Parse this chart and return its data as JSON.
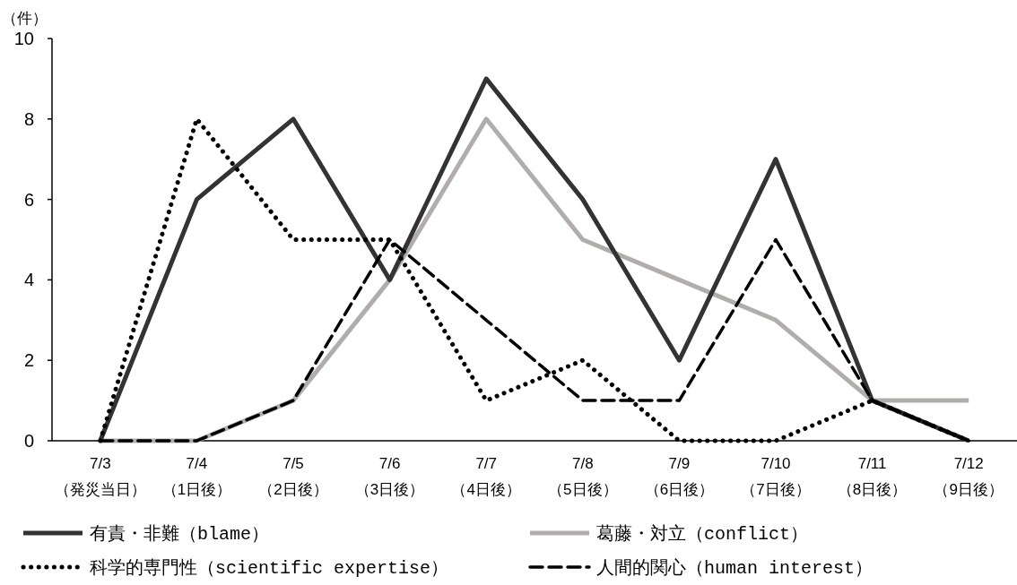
{
  "chart_data": {
    "type": "line",
    "ylabel": "（件）",
    "categories": [
      "7/3\n（発災当日）",
      "7/4\n（1日後）",
      "7/5\n（2日後）",
      "7/6\n（3日後）",
      "7/7\n（4日後）",
      "7/8\n（5日後）",
      "7/9\n（6日後）",
      "7/10\n（7日後）",
      "7/11\n（8日後）",
      "7/12\n（9日後）"
    ],
    "series": [
      {
        "name": "有責・非難（blame）",
        "color": "#333333",
        "line_style": "solid",
        "values": [
          0,
          6,
          8,
          4,
          9,
          6,
          2,
          7,
          1,
          0
        ]
      },
      {
        "name": "葛藤・対立（conflict）",
        "color": "#b1adad",
        "line_style": "solid",
        "values": [
          0,
          0,
          1,
          4,
          8,
          5,
          4,
          3,
          1,
          1
        ]
      },
      {
        "name": "科学的専門性（scientific expertise）",
        "color": "#000000",
        "line_style": "dotted",
        "values": [
          0,
          8,
          5,
          5,
          1,
          2,
          0,
          0,
          1,
          0
        ]
      },
      {
        "name": "人間的関心（human interest）",
        "color": "#000000",
        "line_style": "dashed",
        "values": [
          0,
          0,
          1,
          5,
          3,
          1,
          1,
          5,
          1,
          0
        ]
      }
    ],
    "ylim": [
      0,
      10
    ],
    "yticks": [
      0,
      2,
      4,
      6,
      8,
      10
    ],
    "legend": "bottom"
  }
}
